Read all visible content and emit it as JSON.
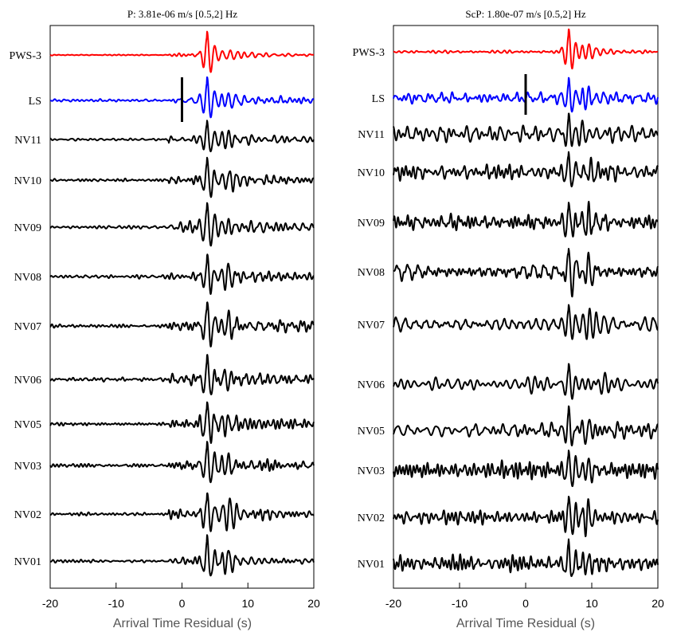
{
  "chart_data": [
    {
      "type": "line",
      "title": "P: 3.81e-06 m/s [0.5,2] Hz",
      "xlabel": "Arrival Time Residual (s)",
      "ylabel": "",
      "xlim": [
        -20,
        20
      ],
      "xticks": [
        "-20",
        "-10",
        "0",
        "10",
        "20"
      ],
      "grid": false,
      "marker_time": 0,
      "series": [
        {
          "name": "PWS-3",
          "color": "#ff0000",
          "noise_amp": 0.05,
          "pulse_amp": 1.0,
          "pulse_t": 3.8,
          "secondary_t": 7.5,
          "secondary_amp": 0.2,
          "freq": 0.85
        },
        {
          "name": "LS",
          "color": "#0000ff",
          "noise_amp": 0.12,
          "pulse_amp": 1.0,
          "pulse_t": 3.8,
          "secondary_t": 7.0,
          "secondary_amp": 0.4,
          "freq": 0.85
        },
        {
          "name": "NV11",
          "color": "#000000",
          "noise_amp": 0.15,
          "pulse_amp": 0.8,
          "pulse_t": 3.8,
          "secondary_t": 7.0,
          "secondary_amp": 0.45,
          "freq": 0.85
        },
        {
          "name": "NV10",
          "color": "#000000",
          "noise_amp": 0.15,
          "pulse_amp": 1.0,
          "pulse_t": 3.8,
          "secondary_t": 7.2,
          "secondary_amp": 0.4,
          "freq": 0.85
        },
        {
          "name": "NV09",
          "color": "#000000",
          "noise_amp": 0.18,
          "pulse_amp": 1.0,
          "pulse_t": 3.8,
          "secondary_t": 7.0,
          "secondary_amp": 0.5,
          "freq": 0.85
        },
        {
          "name": "NV08",
          "color": "#000000",
          "noise_amp": 0.18,
          "pulse_amp": 1.0,
          "pulse_t": 3.8,
          "secondary_t": 7.0,
          "secondary_amp": 0.55,
          "freq": 0.85
        },
        {
          "name": "NV07",
          "color": "#000000",
          "noise_amp": 0.2,
          "pulse_amp": 1.0,
          "pulse_t": 3.8,
          "secondary_t": 7.0,
          "secondary_amp": 0.55,
          "freq": 0.85
        },
        {
          "name": "NV06",
          "color": "#000000",
          "noise_amp": 0.2,
          "pulse_amp": 1.0,
          "pulse_t": 3.8,
          "secondary_t": 6.5,
          "secondary_amp": 0.6,
          "freq": 0.85
        },
        {
          "name": "NV05",
          "color": "#000000",
          "noise_amp": 0.18,
          "pulse_amp": 1.0,
          "pulse_t": 3.8,
          "secondary_t": 7.0,
          "secondary_amp": 0.5,
          "freq": 0.85
        },
        {
          "name": "NV03",
          "color": "#000000",
          "noise_amp": 0.18,
          "pulse_amp": 1.0,
          "pulse_t": 3.8,
          "secondary_t": 7.0,
          "secondary_amp": 0.6,
          "freq": 0.85
        },
        {
          "name": "NV02",
          "color": "#000000",
          "noise_amp": 0.16,
          "pulse_amp": 1.0,
          "pulse_t": 3.8,
          "secondary_t": 7.3,
          "secondary_amp": 0.65,
          "freq": 0.85
        },
        {
          "name": "NV01",
          "color": "#000000",
          "noise_amp": 0.15,
          "pulse_amp": 1.0,
          "pulse_t": 3.8,
          "secondary_t": 7.0,
          "secondary_amp": 0.55,
          "freq": 0.85
        }
      ]
    },
    {
      "type": "line",
      "title": "ScP: 1.80e-07 m/s [0.5,2] Hz",
      "xlabel": "Arrival Time Residual (s)",
      "ylabel": "",
      "xlim": [
        -20,
        20
      ],
      "xticks": [
        "-20",
        "-10",
        "0",
        "10",
        "20"
      ],
      "grid": false,
      "marker_time": 0,
      "series": [
        {
          "name": "PWS-3",
          "color": "#ff0000",
          "noise_amp": 0.06,
          "pulse_amp": 1.0,
          "pulse_t": 6.5,
          "secondary_t": 9.5,
          "secondary_amp": 0.45,
          "freq": 0.9
        },
        {
          "name": "LS",
          "color": "#0000ff",
          "noise_amp": 0.22,
          "pulse_amp": 1.0,
          "pulse_t": 6.5,
          "secondary_t": 9.5,
          "secondary_amp": 0.7,
          "freq": 0.9
        },
        {
          "name": "NV11",
          "color": "#000000",
          "noise_amp": 0.35,
          "pulse_amp": 0.7,
          "pulse_t": 6.5,
          "secondary_t": 9.5,
          "secondary_amp": 0.6,
          "freq": 0.9
        },
        {
          "name": "NV10",
          "color": "#000000",
          "noise_amp": 0.3,
          "pulse_amp": 0.9,
          "pulse_t": 6.5,
          "secondary_t": 10.0,
          "secondary_amp": 0.8,
          "freq": 0.9
        },
        {
          "name": "NV09",
          "color": "#000000",
          "noise_amp": 0.3,
          "pulse_amp": 1.0,
          "pulse_t": 6.5,
          "secondary_t": 9.5,
          "secondary_amp": 0.8,
          "freq": 0.9
        },
        {
          "name": "NV08",
          "color": "#000000",
          "noise_amp": 0.3,
          "pulse_amp": 1.0,
          "pulse_t": 6.5,
          "secondary_t": 9.5,
          "secondary_amp": 0.75,
          "freq": 0.9
        },
        {
          "name": "NV07",
          "color": "#000000",
          "noise_amp": 0.3,
          "pulse_amp": 1.0,
          "pulse_t": 6.5,
          "secondary_t": 9.7,
          "secondary_amp": 0.85,
          "freq": 0.9
        },
        {
          "name": "NV06",
          "color": "#000000",
          "noise_amp": 0.32,
          "pulse_amp": 1.0,
          "pulse_t": 6.5,
          "secondary_t": 9.5,
          "secondary_amp": 0.7,
          "freq": 0.9
        },
        {
          "name": "NV05",
          "color": "#000000",
          "noise_amp": 0.3,
          "pulse_amp": 0.9,
          "pulse_t": 6.5,
          "secondary_t": 9.5,
          "secondary_amp": 0.55,
          "freq": 0.9
        },
        {
          "name": "NV03",
          "color": "#000000",
          "noise_amp": 0.32,
          "pulse_amp": 1.0,
          "pulse_t": 6.5,
          "secondary_t": 9.5,
          "secondary_amp": 0.75,
          "freq": 0.9
        },
        {
          "name": "NV02",
          "color": "#000000",
          "noise_amp": 0.32,
          "pulse_amp": 1.0,
          "pulse_t": 6.5,
          "secondary_t": 9.5,
          "secondary_amp": 0.8,
          "freq": 0.9
        },
        {
          "name": "NV01",
          "color": "#000000",
          "noise_amp": 0.3,
          "pulse_amp": 1.0,
          "pulse_t": 6.5,
          "secondary_t": 9.5,
          "secondary_amp": 0.75,
          "freq": 0.9
        }
      ]
    }
  ]
}
